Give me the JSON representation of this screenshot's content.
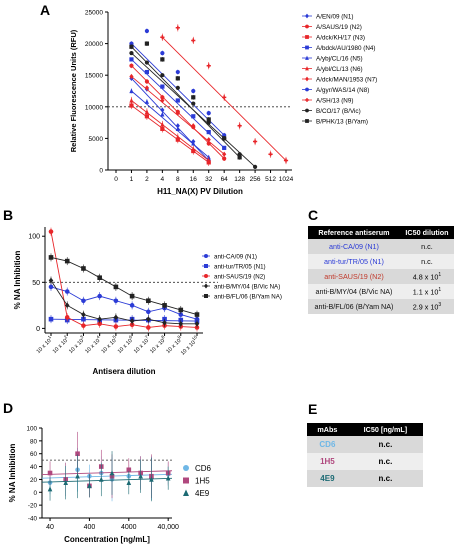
{
  "panels": {
    "A": "A",
    "B": "B",
    "C": "C",
    "D": "D",
    "E": "E"
  },
  "colors": {
    "red": "#e8262a",
    "blue": "#2b3bd6",
    "black": "#222222"
  },
  "chart_data": [
    {
      "id": "A",
      "type": "line",
      "xlabel": "H11_NA(X) PV Dilution",
      "ylabel": "Relative Fluorescence Units (RFU)",
      "x_ticks": [
        "0",
        "1",
        "2",
        "4",
        "8",
        "16",
        "32",
        "64",
        "128",
        "256",
        "512",
        "1024"
      ],
      "y_ticks": [
        "0",
        "5000",
        "10000",
        "15000",
        "20000",
        "25000"
      ],
      "ylim": [
        0,
        25000
      ],
      "threshold": 10000,
      "legend_position": "right",
      "series": [
        {
          "name": "A/EN/09 (N1)",
          "color": "#2b3bd6",
          "marker": "diamond",
          "x": [
            1,
            2,
            4,
            8,
            16,
            32
          ],
          "y": [
            14500,
            12800,
            9500,
            7000,
            4500,
            1500
          ]
        },
        {
          "name": "A/SAUS/19 (N2)",
          "color": "#e8262a",
          "marker": "circle",
          "x": [
            1,
            2,
            4,
            8,
            16,
            32,
            64
          ],
          "y": [
            16500,
            14000,
            11500,
            9200,
            6800,
            4200,
            1800
          ]
        },
        {
          "name": "A/dck/KH/17 (N3)",
          "color": "#e8262a",
          "marker": "square",
          "x": [
            1,
            2,
            4,
            8,
            16,
            32
          ],
          "y": [
            10200,
            8500,
            6500,
            4800,
            3000,
            1200
          ]
        },
        {
          "name": "A/bdck/AU/1980 (N4)",
          "color": "#2b3bd6",
          "marker": "square",
          "x": [
            1,
            2,
            4,
            8,
            16,
            32,
            64
          ],
          "y": [
            17500,
            15500,
            13200,
            11000,
            8500,
            6000,
            3500
          ]
        },
        {
          "name": "A/ybj/CL/16 (N5)",
          "color": "#2b3bd6",
          "marker": "triangle",
          "x": [
            1,
            2,
            4,
            8,
            16,
            32
          ],
          "y": [
            12500,
            10800,
            8800,
            6500,
            4200,
            2000
          ]
        },
        {
          "name": "A/ybl/CL/13 (N6)",
          "color": "#e8262a",
          "marker": "triangle",
          "x": [
            1,
            2,
            4,
            8,
            16,
            32
          ],
          "y": [
            11000,
            9200,
            7200,
            5200,
            3300,
            1500
          ]
        },
        {
          "name": "A/dck/MAN/1953 (N7)",
          "color": "#e8262a",
          "marker": "diamond",
          "x": [
            1,
            2,
            4,
            8,
            16,
            32,
            64
          ],
          "y": [
            14800,
            13000,
            11000,
            9000,
            7000,
            4800,
            2500
          ]
        },
        {
          "name": "A/gyr/WAS/14 (N8)",
          "color": "#2b3bd6",
          "marker": "circle",
          "x": [
            1,
            2,
            4,
            8,
            16,
            32,
            64
          ],
          "y": [
            20000,
            22000,
            18500,
            15500,
            12500,
            9000,
            5500
          ]
        },
        {
          "name": "A/SH/13 (N9)",
          "color": "#e8262a",
          "marker": "cross",
          "x": [
            4,
            8,
            16,
            32,
            64,
            128,
            256,
            512,
            1024
          ],
          "y": [
            21000,
            22500,
            20500,
            16500,
            11500,
            7000,
            4500,
            2500,
            1500
          ]
        },
        {
          "name": "B/CO/17 (B/Vic)",
          "color": "#222222",
          "marker": "circle",
          "x": [
            1,
            2,
            4,
            8,
            16,
            32,
            64,
            128,
            256
          ],
          "y": [
            18500,
            17000,
            15000,
            13000,
            10500,
            7500,
            5000,
            2500,
            500
          ]
        },
        {
          "name": "B/PHK/13 (B/Yam)",
          "color": "#222222",
          "marker": "square",
          "x": [
            1,
            2,
            4,
            8,
            16,
            32,
            64,
            128
          ],
          "y": [
            19500,
            20000,
            17500,
            14500,
            11500,
            8000,
            5000,
            2000
          ]
        }
      ]
    },
    {
      "id": "B",
      "type": "line",
      "xlabel": "Antisera dilution",
      "ylabel": "% NA Inhibition",
      "x_ticks": [
        "10 x 10^1",
        "10 x 10^2",
        "10 x 10^3",
        "10 x 10^4",
        "10 x 10^5",
        "10 x 10^6",
        "10 x 10^7",
        "10 x 10^8",
        "10 x 10^9",
        "10 x 10^10"
      ],
      "y_ticks": [
        "0",
        "50",
        "100"
      ],
      "ylim": [
        -5,
        110
      ],
      "threshold": 50,
      "legend_position": "right",
      "series": [
        {
          "name": "anti-CA/09 (N1)",
          "color": "#2b3bd6",
          "marker": "circle",
          "x": [
            1,
            2,
            3,
            4,
            5,
            6,
            7,
            8,
            9,
            10
          ],
          "y": [
            45,
            40,
            30,
            35,
            30,
            25,
            18,
            22,
            15,
            10
          ]
        },
        {
          "name": "anti-tur/TR/05 (N1)",
          "color": "#2b3bd6",
          "marker": "square",
          "x": [
            1,
            2,
            3,
            4,
            5,
            6,
            7,
            8,
            9,
            10
          ],
          "y": [
            10,
            9,
            10,
            8,
            9,
            10,
            9,
            10,
            9,
            8
          ]
        },
        {
          "name": "anti-SAUS/19 (N2)",
          "color": "#e8262a",
          "marker": "circle",
          "x": [
            1,
            2,
            3,
            4,
            5,
            6,
            7,
            8,
            9,
            10
          ],
          "y": [
            105,
            12,
            3,
            5,
            2,
            4,
            1,
            3,
            2,
            1
          ]
        },
        {
          "name": "anti-B/MY/04 (B/Vic NA)",
          "color": "#222222",
          "marker": "diamond",
          "x": [
            1,
            2,
            3,
            4,
            5,
            6,
            7,
            8,
            9,
            10
          ],
          "y": [
            52,
            25,
            15,
            10,
            12,
            8,
            10,
            6,
            5,
            5
          ]
        },
        {
          "name": "anti-B/FL/06 (B/Yam NA)",
          "color": "#222222",
          "marker": "square",
          "x": [
            1,
            2,
            3,
            4,
            5,
            6,
            7,
            8,
            9,
            10
          ],
          "y": [
            77,
            73,
            65,
            55,
            45,
            35,
            30,
            25,
            20,
            15
          ]
        }
      ]
    },
    {
      "id": "D",
      "type": "scatter",
      "xlabel": "Concentration [ng/mL]",
      "ylabel": "% NA Inhibition",
      "x_ticks": [
        "40",
        "400",
        "4000",
        "40,000"
      ],
      "y_ticks": [
        "-40",
        "-20",
        "0",
        "20",
        "40",
        "60",
        "80",
        "100"
      ],
      "ylim": [
        -40,
        100
      ],
      "threshold": 50,
      "legend_position": "right",
      "series": [
        {
          "name": "CD6",
          "color": "#6fb7e6",
          "marker": "circle",
          "x": [
            40,
            100,
            200,
            400,
            800,
            1500,
            4000,
            8000,
            15000,
            40000
          ],
          "y": [
            15,
            20,
            35,
            25,
            30,
            20,
            25,
            30,
            22,
            28
          ]
        },
        {
          "name": "1H5",
          "color": "#b0487e",
          "marker": "square",
          "x": [
            40,
            100,
            200,
            400,
            800,
            1500,
            4000,
            8000,
            15000,
            40000
          ],
          "y": [
            30,
            20,
            60,
            10,
            40,
            25,
            35,
            30,
            25,
            30
          ]
        },
        {
          "name": "4E9",
          "color": "#1c6a73",
          "marker": "triangle",
          "x": [
            40,
            100,
            200,
            400,
            800,
            1500,
            4000,
            8000,
            15000,
            40000
          ],
          "y": [
            5,
            15,
            25,
            10,
            20,
            30,
            15,
            25,
            20,
            22
          ]
        }
      ]
    }
  ],
  "tableC": {
    "header_antiserum": "Reference antiserum",
    "header_ic50": "IC50 dilution",
    "rows": [
      {
        "name": "anti-CA/09 (N1)",
        "value": "n.c.",
        "color": "#2b3bd6"
      },
      {
        "name": "anti-tur/TR/05 (N1)",
        "value": "n.c.",
        "color": "#2b3bd6"
      },
      {
        "name": "anti-SAUS/19 (N2)",
        "value": "4.8 x 10^1",
        "color": "#c0392b"
      },
      {
        "name": "anti-B/MY/04 (B/Vic NA)",
        "value": "1.1 x 10^1",
        "color": "#111111"
      },
      {
        "name": "anti-B/FL/06 (B/Yam NA)",
        "value": "2.9 x 10^3",
        "color": "#111111"
      }
    ]
  },
  "tableE": {
    "header_mabs": "mAbs",
    "header_ic50": "IC50 [ng/mL]",
    "rows": [
      {
        "name": "CD6",
        "value": "n.c.",
        "color": "#6fb7e6"
      },
      {
        "name": "1H5",
        "value": "n.c.",
        "color": "#b0487e"
      },
      {
        "name": "4E9",
        "value": "n.c.",
        "color": "#1c6a73"
      }
    ]
  }
}
